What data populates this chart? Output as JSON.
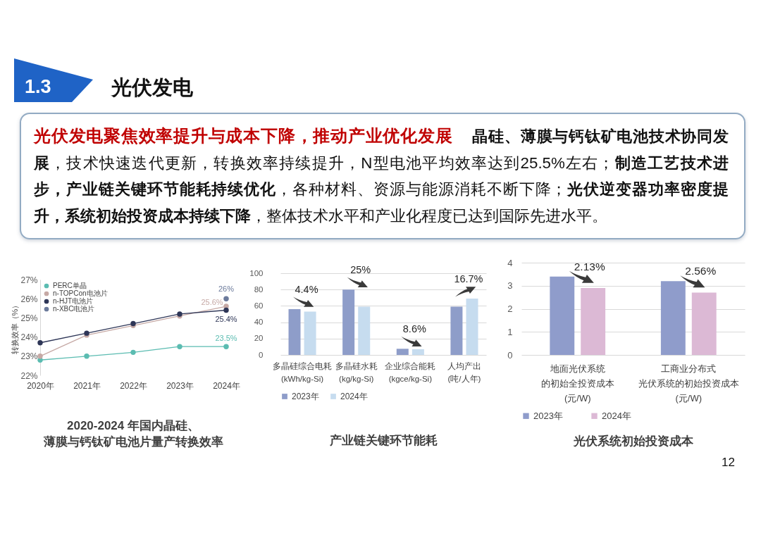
{
  "chart_data": [
    {
      "type": "other",
      "title": "光伏发电",
      "subtitle": "1.3",
      "annotations": [
        "光伏发电聚焦效率提升与成本下降，推动产业优化发展",
        "晶硅、薄膜与钙钛矿电池技术协同发",
        "展",
        "，技术快速迭代更新，转换效率持续提升，N型电池平均效率达到25.5%左右；",
        "制造工艺技术进",
        "步，产业链关键环节能耗持续优化",
        "，各种材料、资源与能源消耗不断下降；",
        "光伏逆变器功率密度提",
        "升，系统初始投资成本持续下降",
        "，整体技术水平和产业化程度已达到国际先进水平。",
        "12"
      ]
    },
    {
      "type": "line",
      "title": "2020-2024 年国内晶硅、薄膜与钙钛矿电池片量产转换效率",
      "ylabel": "转换效率（%）",
      "categories": [
        "2020年",
        "2021年",
        "2022年",
        "2023年",
        "2024年"
      ],
      "series": [
        {
          "name": "PERC单晶",
          "color": "#5bbcb1",
          "values": [
            22.8,
            23.0,
            23.2,
            23.5,
            23.5
          ],
          "value_labels": [
            null,
            null,
            null,
            null,
            "23.5%"
          ]
        },
        {
          "name": "n-TOPCon电池片",
          "color": "#c6a9a5",
          "values": [
            23.0,
            24.1,
            24.6,
            25.1,
            25.6
          ],
          "value_labels": [
            null,
            null,
            null,
            null,
            "25.6%"
          ]
        },
        {
          "name": "n-HJT电池片",
          "color": "#2e3657",
          "values": [
            23.7,
            24.2,
            24.7,
            25.2,
            25.4
          ],
          "value_labels": [
            null,
            null,
            null,
            null,
            "25.4%"
          ]
        },
        {
          "name": "n-XBC电池片",
          "type": "scatter",
          "color": "#6b7a9b",
          "values": [
            null,
            null,
            null,
            null,
            26
          ],
          "value_labels": [
            null,
            null,
            null,
            null,
            "26%"
          ]
        }
      ],
      "ylim": [
        22,
        27
      ],
      "yticks": [
        {
          "value": 22,
          "label": "22%"
        },
        {
          "value": 23,
          "label": "23%"
        },
        {
          "value": 24,
          "label": "24%"
        },
        {
          "value": 25,
          "label": "25%"
        },
        {
          "value": 26,
          "label": "26%"
        },
        {
          "value": 27,
          "label": "27%"
        }
      ],
      "legend": "top left",
      "marker": "circle"
    },
    {
      "type": "bar",
      "title": "产业链关键环节能耗",
      "categories": [
        "多晶硅综合电耗\n(kWh/kg-Si)",
        "多晶硅水耗\n(kg/kg-Si)",
        "企业综合能耗\n(kgce/kg-Si)",
        "人均产出\n(吨/人年)"
      ],
      "series": [
        {
          "name": "2023年",
          "color": "#8e9dc9",
          "values": [
            56,
            80,
            7.5,
            59
          ]
        },
        {
          "name": "2024年",
          "color": "#c6dcef",
          "values": [
            53,
            59,
            7,
            69
          ]
        }
      ],
      "ylim": [
        0,
        100
      ],
      "yticks": [
        0,
        20,
        40,
        60,
        80,
        100
      ],
      "grid": "y",
      "legend": "bottom",
      "annotations": [
        "4.4%",
        "25%",
        "8.6%",
        "16.7%"
      ]
    },
    {
      "type": "bar",
      "title": "光伏系统初始投资成本",
      "categories": [
        "地面光伏系统的初始全投资成本\n(元/W)",
        "工商业分布式光伏系统的初始投资成本\n(元/W)"
      ],
      "series": [
        {
          "name": "2023年",
          "color": "#8f9ccb",
          "values": [
            3.4,
            3.2
          ]
        },
        {
          "name": "2024年",
          "color": "#dcb9d5",
          "values": [
            2.9,
            2.7
          ]
        }
      ],
      "ylim": [
        0,
        4
      ],
      "yticks": [
        0,
        1,
        2,
        3,
        4
      ],
      "grid": "y",
      "legend": "bottom",
      "annotations": [
        "2.13%",
        "2.56%"
      ]
    }
  ]
}
